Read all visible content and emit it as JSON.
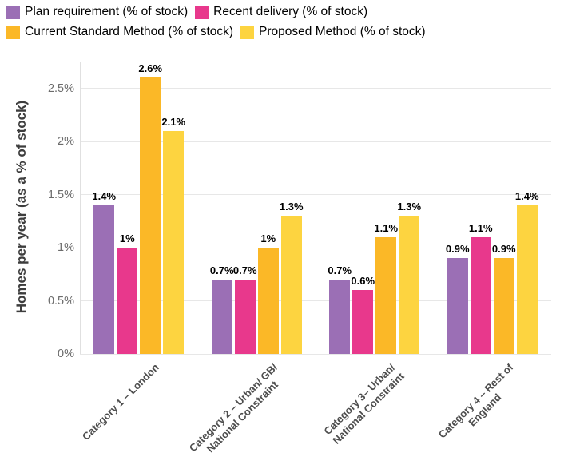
{
  "colors": {
    "plan_requirement": "#9B6FB5",
    "recent_delivery": "#E8388C",
    "current_standard_method": "#FBB827",
    "proposed_method": "#FDD440",
    "gridline": "#e7e7e7",
    "background": "#ffffff"
  },
  "chart_data": {
    "type": "bar",
    "title": "",
    "xlabel": "",
    "ylabel": "Homes per year (as a % of stock)",
    "grid": true,
    "legend_position": "top",
    "ylim": [
      0,
      2.74
    ],
    "y_ticks": [
      "0%",
      "0.5%",
      "1%",
      "1.5%",
      "2%",
      "2.5%"
    ],
    "y_tick_values": [
      0,
      0.5,
      1,
      1.5,
      2,
      2.5
    ],
    "categories": [
      "Category 1 – London",
      "Category 2 – Urban/ GB/ National Constraint",
      "Category 3– Urban/ National Constraint",
      "Category 4 – Rest of England"
    ],
    "category_lines": [
      [
        "Category 1 – London"
      ],
      [
        "Category 2 – Urban/ GB/",
        "National Constraint"
      ],
      [
        "Category 3– Urban/",
        "National Constraint"
      ],
      [
        "Category 4 – Rest of",
        "England"
      ]
    ],
    "series": [
      {
        "name": "Plan requirement (% of stock)",
        "color": "#9B6FB5",
        "values": [
          1.4,
          0.7,
          0.7,
          0.9
        ],
        "labels": [
          "1.4%",
          "0.7%",
          "0.7%",
          "0.9%"
        ]
      },
      {
        "name": "Recent delivery (% of stock)",
        "color": "#E8388C",
        "values": [
          1.0,
          0.7,
          0.6,
          1.1
        ],
        "labels": [
          "1%",
          "0.7%",
          "0.6%",
          "1.1%"
        ]
      },
      {
        "name": "Current Standard Method (% of stock)",
        "color": "#FBB827",
        "values": [
          2.6,
          1.0,
          1.1,
          0.9
        ],
        "labels": [
          "2.6%",
          "1%",
          "1.1%",
          "0.9%"
        ]
      },
      {
        "name": "Proposed Method (% of stock)",
        "color": "#FDD440",
        "values": [
          2.1,
          1.3,
          1.3,
          1.4
        ],
        "labels": [
          "2.1%",
          "1.3%",
          "1.3%",
          "1.4%"
        ]
      }
    ]
  }
}
